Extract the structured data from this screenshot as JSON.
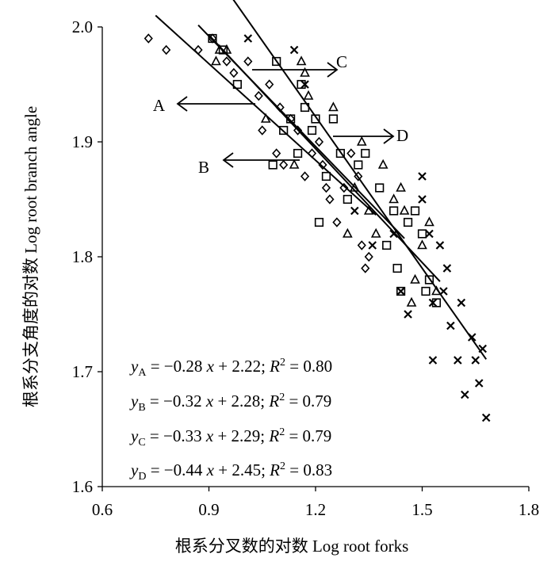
{
  "chart_data": {
    "type": "scatter",
    "xlabel": "根系分叉数的对数 Log root forks",
    "ylabel": "根系分支角度的对数 Log root branch angle",
    "xlim": [
      0.6,
      1.8
    ],
    "ylim": [
      1.6,
      2.0
    ],
    "x_ticks": [
      "0.6",
      "0.9",
      "1.2",
      "1.5",
      "1.8"
    ],
    "y_ticks": [
      "1.6",
      "1.7",
      "1.8",
      "1.9",
      "2.0"
    ],
    "grid": false,
    "series": [
      {
        "name": "A",
        "marker": "diamond",
        "points": [
          [
            0.73,
            1.99
          ],
          [
            0.78,
            1.98
          ],
          [
            0.87,
            1.98
          ],
          [
            0.91,
            1.99
          ],
          [
            0.95,
            1.97
          ],
          [
            0.97,
            1.96
          ],
          [
            1.01,
            1.97
          ],
          [
            1.04,
            1.94
          ],
          [
            1.05,
            1.91
          ],
          [
            1.07,
            1.95
          ],
          [
            1.09,
            1.89
          ],
          [
            1.1,
            1.93
          ],
          [
            1.11,
            1.88
          ],
          [
            1.13,
            1.92
          ],
          [
            1.15,
            1.91
          ],
          [
            1.17,
            1.87
          ],
          [
            1.19,
            1.89
          ],
          [
            1.21,
            1.9
          ],
          [
            1.22,
            1.88
          ],
          [
            1.23,
            1.86
          ],
          [
            1.24,
            1.85
          ],
          [
            1.26,
            1.83
          ],
          [
            1.28,
            1.86
          ],
          [
            1.3,
            1.89
          ],
          [
            1.32,
            1.87
          ],
          [
            1.33,
            1.81
          ],
          [
            1.34,
            1.79
          ],
          [
            1.35,
            1.8
          ]
        ]
      },
      {
        "name": "B",
        "marker": "square",
        "points": [
          [
            0.91,
            1.99
          ],
          [
            0.94,
            1.98
          ],
          [
            0.98,
            1.95
          ],
          [
            1.08,
            1.88
          ],
          [
            1.09,
            1.97
          ],
          [
            1.11,
            1.91
          ],
          [
            1.13,
            1.92
          ],
          [
            1.15,
            1.89
          ],
          [
            1.16,
            1.95
          ],
          [
            1.17,
            1.93
          ],
          [
            1.19,
            1.91
          ],
          [
            1.2,
            1.92
          ],
          [
            1.21,
            1.83
          ],
          [
            1.23,
            1.87
          ],
          [
            1.25,
            1.92
          ],
          [
            1.27,
            1.89
          ],
          [
            1.29,
            1.85
          ],
          [
            1.32,
            1.88
          ],
          [
            1.34,
            1.89
          ],
          [
            1.38,
            1.86
          ],
          [
            1.4,
            1.81
          ],
          [
            1.42,
            1.84
          ],
          [
            1.43,
            1.79
          ],
          [
            1.44,
            1.77
          ],
          [
            1.46,
            1.83
          ],
          [
            1.48,
            1.84
          ],
          [
            1.5,
            1.82
          ],
          [
            1.51,
            1.77
          ],
          [
            1.52,
            1.78
          ],
          [
            1.54,
            1.76
          ]
        ]
      },
      {
        "name": "C",
        "marker": "triangle",
        "points": [
          [
            0.92,
            1.97
          ],
          [
            0.93,
            1.98
          ],
          [
            0.95,
            1.98
          ],
          [
            1.06,
            1.92
          ],
          [
            1.14,
            1.88
          ],
          [
            1.16,
            1.97
          ],
          [
            1.17,
            1.96
          ],
          [
            1.18,
            1.94
          ],
          [
            1.25,
            1.93
          ],
          [
            1.29,
            1.82
          ],
          [
            1.31,
            1.86
          ],
          [
            1.33,
            1.9
          ],
          [
            1.35,
            1.84
          ],
          [
            1.37,
            1.82
          ],
          [
            1.39,
            1.88
          ],
          [
            1.42,
            1.85
          ],
          [
            1.44,
            1.86
          ],
          [
            1.45,
            1.84
          ],
          [
            1.47,
            1.76
          ],
          [
            1.48,
            1.78
          ],
          [
            1.5,
            1.81
          ],
          [
            1.52,
            1.83
          ],
          [
            1.54,
            1.77
          ]
        ]
      },
      {
        "name": "D",
        "marker": "cross",
        "points": [
          [
            1.01,
            1.99
          ],
          [
            1.14,
            1.98
          ],
          [
            1.17,
            1.95
          ],
          [
            1.31,
            1.84
          ],
          [
            1.36,
            1.81
          ],
          [
            1.42,
            1.82
          ],
          [
            1.44,
            1.77
          ],
          [
            1.46,
            1.75
          ],
          [
            1.5,
            1.87
          ],
          [
            1.5,
            1.85
          ],
          [
            1.52,
            1.82
          ],
          [
            1.53,
            1.71
          ],
          [
            1.55,
            1.81
          ],
          [
            1.56,
            1.77
          ],
          [
            1.57,
            1.79
          ],
          [
            1.58,
            1.74
          ],
          [
            1.61,
            1.76
          ],
          [
            1.62,
            1.68
          ],
          [
            1.64,
            1.73
          ],
          [
            1.65,
            1.71
          ],
          [
            1.66,
            1.69
          ],
          [
            1.67,
            1.72
          ],
          [
            1.68,
            1.66
          ],
          [
            1.6,
            1.71
          ],
          [
            1.53,
            1.76
          ]
        ]
      }
    ],
    "fit_lines": [
      {
        "name": "A",
        "slope": -0.28,
        "intercept": 2.22,
        "x_range": [
          0.75,
          1.37
        ]
      },
      {
        "name": "B",
        "slope": -0.32,
        "intercept": 2.28,
        "x_range": [
          0.87,
          1.45
        ]
      },
      {
        "name": "C",
        "slope": -0.33,
        "intercept": 2.29,
        "x_range": [
          0.9,
          1.55
        ]
      },
      {
        "name": "D",
        "slope": -0.44,
        "intercept": 2.45,
        "x_range": [
          0.9,
          1.68
        ]
      }
    ],
    "equations": [
      {
        "name": "A",
        "slope": "−0.28",
        "intercept": "2.22",
        "r2": "0.80"
      },
      {
        "name": "B",
        "slope": "−0.32",
        "intercept": "2.28",
        "r2": "0.79"
      },
      {
        "name": "C",
        "slope": "−0.33",
        "intercept": "2.29",
        "r2": "0.79"
      },
      {
        "name": "D",
        "slope": "−0.44",
        "intercept": "2.45",
        "r2": "0.83"
      }
    ],
    "annotations": [
      {
        "label": "A",
        "direction": "left"
      },
      {
        "label": "B",
        "direction": "left"
      },
      {
        "label": "C",
        "direction": "right"
      },
      {
        "label": "D",
        "direction": "right"
      }
    ]
  }
}
